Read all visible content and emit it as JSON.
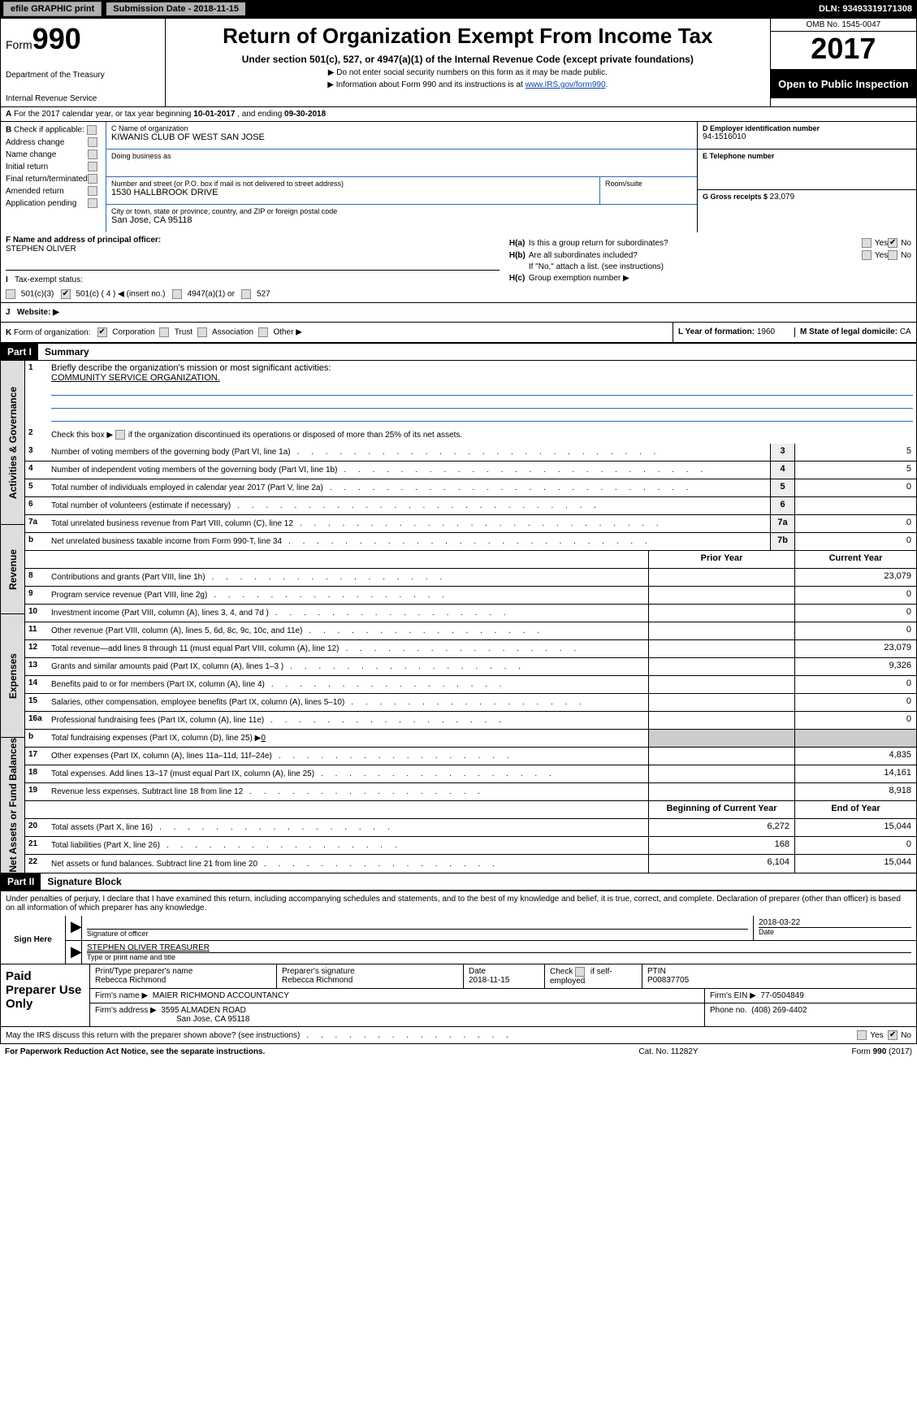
{
  "topbar": {
    "efile": "efile GRAPHIC print",
    "submission_date_label": "Submission Date - 2018-11-15",
    "dln": "DLN: 93493319171308"
  },
  "header": {
    "form_prefix": "Form",
    "form_number": "990",
    "dept": "Department of the Treasury",
    "irs": "Internal Revenue Service",
    "title": "Return of Organization Exempt From Income Tax",
    "subtitle": "Under section 501(c), 527, or 4947(a)(1) of the Internal Revenue Code (except private foundations)",
    "note1": "▶ Do not enter social security numbers on this form as it may be made public.",
    "note2_prefix": "▶ Information about Form 990 and its instructions is at ",
    "note2_link": "www.IRS.gov/form990",
    "note2_suffix": ".",
    "omb": "OMB No. 1545-0047",
    "year": "2017",
    "inspection": "Open to Public Inspection"
  },
  "line_a": {
    "prefix": "A",
    "text_a": "For the 2017 calendar year, or tax year beginning ",
    "begin": "10-01-2017",
    "text_b": " , and ending ",
    "end": "09-30-2018"
  },
  "col_b": {
    "label": "B",
    "check_label": "Check if applicable:",
    "items": [
      "Address change",
      "Name change",
      "Initial return",
      "Final return/terminated",
      "Amended return",
      "Application pending"
    ]
  },
  "col_c": {
    "label_name": "C Name of organization",
    "name": "KIWANIS CLUB OF WEST SAN JOSE",
    "dba_label": "Doing business as",
    "dba": "",
    "addr_label": "Number and street (or P.O. box if mail is not delivered to street address)",
    "addr": "1530 HALLBROOK DRIVE",
    "room_label": "Room/suite",
    "city_label": "City or town, state or province, country, and ZIP or foreign postal code",
    "city": "San Jose, CA  95118"
  },
  "col_d": {
    "ein_label": "D Employer identification number",
    "ein": "94-1516010",
    "phone_label": "E Telephone number",
    "phone": "",
    "gross_label": "G Gross receipts $ ",
    "gross": "23,079"
  },
  "section_f": {
    "label": "F Name and address of principal officer:",
    "name": "STEPHEN OLIVER"
  },
  "section_h": {
    "ha_label": "H(a)",
    "ha_text": "Is this a group return for subordinates?",
    "hb_label": "H(b)",
    "hb_text": "Are all subordinates included?",
    "hb_note": "If \"No,\" attach a list. (see instructions)",
    "hc_label": "H(c)",
    "hc_text": "Group exemption number ▶",
    "yes": "Yes",
    "no": "No"
  },
  "section_i": {
    "label": "I",
    "text": "Tax-exempt status:",
    "opts": [
      "501(c)(3)",
      "501(c) ( 4 ) ◀ (insert no.)",
      "4947(a)(1) or",
      "527"
    ],
    "checked_index": 1
  },
  "section_j": {
    "label": "J",
    "text": "Website: ▶"
  },
  "section_k": {
    "label": "K",
    "text": "Form of organization:",
    "opts": [
      "Corporation",
      "Trust",
      "Association",
      "Other ▶"
    ],
    "checked_index": 0
  },
  "section_l": {
    "text": "L Year of formation: ",
    "val": "1960"
  },
  "section_m": {
    "text": "M State of legal domicile: ",
    "val": "CA"
  },
  "parts": {
    "p1_label": "Part I",
    "p1_title": "Summary",
    "p2_label": "Part II",
    "p2_title": "Signature Block"
  },
  "summary": {
    "vtabs": [
      "Activities & Governance",
      "Revenue",
      "Expenses",
      "Net Assets or Fund Balances"
    ],
    "line1_label": "1",
    "line1_text": "Briefly describe the organization's mission or most significant activities:",
    "line1_val": "COMMUNITY SERVICE ORGANIZATION.",
    "line2_label": "2",
    "line2_text": "Check this box ▶",
    "line2_suffix": " if the organization discontinued its operations or disposed of more than 25% of its net assets.",
    "lines_ag": [
      {
        "n": "3",
        "t": "Number of voting members of the governing body (Part VI, line 1a)",
        "box": "3",
        "v": "5"
      },
      {
        "n": "4",
        "t": "Number of independent voting members of the governing body (Part VI, line 1b)",
        "box": "4",
        "v": "5"
      },
      {
        "n": "5",
        "t": "Total number of individuals employed in calendar year 2017 (Part V, line 2a)",
        "box": "5",
        "v": "0"
      },
      {
        "n": "6",
        "t": "Total number of volunteers (estimate if necessary)",
        "box": "6",
        "v": ""
      },
      {
        "n": "7a",
        "t": "Total unrelated business revenue from Part VIII, column (C), line 12",
        "box": "7a",
        "v": "0"
      },
      {
        "n": "b",
        "t": "Net unrelated business taxable income from Form 990-T, line 34",
        "box": "7b",
        "v": "0"
      }
    ],
    "col_prior": "Prior Year",
    "col_current": "Current Year",
    "lines_rev": [
      {
        "n": "8",
        "t": "Contributions and grants (Part VIII, line 1h)",
        "p": "",
        "c": "23,079"
      },
      {
        "n": "9",
        "t": "Program service revenue (Part VIII, line 2g)",
        "p": "",
        "c": "0"
      },
      {
        "n": "10",
        "t": "Investment income (Part VIII, column (A), lines 3, 4, and 7d )",
        "p": "",
        "c": "0"
      },
      {
        "n": "11",
        "t": "Other revenue (Part VIII, column (A), lines 5, 6d, 8c, 9c, 10c, and 11e)",
        "p": "",
        "c": "0"
      },
      {
        "n": "12",
        "t": "Total revenue—add lines 8 through 11 (must equal Part VIII, column (A), line 12)",
        "p": "",
        "c": "23,079"
      }
    ],
    "lines_exp": [
      {
        "n": "13",
        "t": "Grants and similar amounts paid (Part IX, column (A), lines 1–3 )",
        "p": "",
        "c": "9,326"
      },
      {
        "n": "14",
        "t": "Benefits paid to or for members (Part IX, column (A), line 4)",
        "p": "",
        "c": "0"
      },
      {
        "n": "15",
        "t": "Salaries, other compensation, employee benefits (Part IX, column (A), lines 5–10)",
        "p": "",
        "c": "0"
      },
      {
        "n": "16a",
        "t": "Professional fundraising fees (Part IX, column (A), line 11e)",
        "p": "",
        "c": "0"
      }
    ],
    "line16b_n": "b",
    "line16b_t": "Total fundraising expenses (Part IX, column (D), line 25) ▶",
    "line16b_v": "0",
    "lines_exp2": [
      {
        "n": "17",
        "t": "Other expenses (Part IX, column (A), lines 11a–11d, 11f–24e)",
        "p": "",
        "c": "4,835"
      },
      {
        "n": "18",
        "t": "Total expenses. Add lines 13–17 (must equal Part IX, column (A), line 25)",
        "p": "",
        "c": "14,161"
      },
      {
        "n": "19",
        "t": "Revenue less expenses. Subtract line 18 from line 12",
        "p": "",
        "c": "8,918"
      }
    ],
    "col_begin": "Beginning of Current Year",
    "col_end": "End of Year",
    "lines_na": [
      {
        "n": "20",
        "t": "Total assets (Part X, line 16)",
        "p": "6,272",
        "c": "15,044"
      },
      {
        "n": "21",
        "t": "Total liabilities (Part X, line 26)",
        "p": "168",
        "c": "0"
      },
      {
        "n": "22",
        "t": "Net assets or fund balances. Subtract line 21 from line 20",
        "p": "6,104",
        "c": "15,044"
      }
    ]
  },
  "sig": {
    "penalty": "Under penalties of perjury, I declare that I have examined this return, including accompanying schedules and statements, and to the best of my knowledge and belief, it is true, correct, and complete. Declaration of preparer (other than officer) is based on all information of which preparer has any knowledge.",
    "sign_here": "Sign Here",
    "sig_officer": "Signature of officer",
    "sig_date": "2018-03-22",
    "date_label": "Date",
    "name_title": "STEPHEN OLIVER  TREASURER",
    "name_title_label": "Type or print name and title"
  },
  "paid": {
    "label": "Paid Preparer Use Only",
    "prep_name_label": "Print/Type preparer's name",
    "prep_name": "Rebecca Richmond",
    "prep_sig_label": "Preparer's signature",
    "prep_sig": "Rebecca Richmond",
    "date_label": "Date",
    "date": "2018-11-15",
    "check_label": "Check",
    "self_emp": "if self-employed",
    "ptin_label": "PTIN",
    "ptin": "P00837705",
    "firm_name_label": "Firm's name    ▶",
    "firm_name": "MAIER RICHMOND ACCOUNTANCY",
    "firm_ein_label": "Firm's EIN ▶",
    "firm_ein": "77-0504849",
    "firm_addr_label": "Firm's address ▶",
    "firm_addr1": "3595 ALMADEN ROAD",
    "firm_addr2": "San Jose, CA  95118",
    "phone_label": "Phone no.",
    "phone": "(408) 269-4402"
  },
  "bottom": {
    "discuss": "May the IRS discuss this return with the preparer shown above? (see instructions)",
    "yes": "Yes",
    "no": "No"
  },
  "footer": {
    "left": "For Paperwork Reduction Act Notice, see the separate instructions.",
    "center": "Cat. No. 11282Y",
    "right_a": "Form ",
    "right_b": "990",
    "right_c": " (2017)"
  }
}
